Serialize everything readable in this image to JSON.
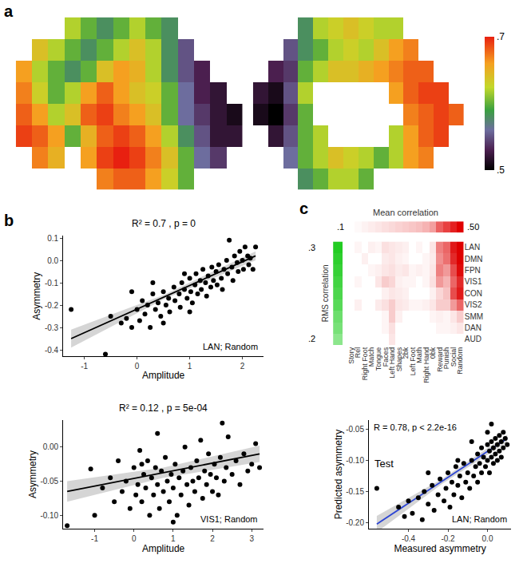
{
  "chart_data": [
    {
      "type": "heatmap",
      "panel_label": "a",
      "tick_labels": false,
      "views": [
        {
          "cells": [
            [
              null,
              null,
              null,
              0.62,
              0.6,
              0.58,
              0.6,
              0.62,
              0.6,
              0.58,
              null,
              null,
              null,
              null
            ],
            [
              null,
              0.64,
              0.62,
              0.6,
              0.58,
              0.6,
              0.62,
              0.64,
              0.62,
              0.58,
              0.55,
              null,
              null,
              null
            ],
            [
              0.66,
              0.62,
              0.6,
              0.58,
              0.6,
              0.64,
              0.66,
              0.65,
              0.62,
              0.58,
              0.55,
              0.53,
              null,
              null
            ],
            [
              0.67,
              0.63,
              0.6,
              0.62,
              0.66,
              0.68,
              0.66,
              0.64,
              0.63,
              0.6,
              0.56,
              0.53,
              0.52,
              null
            ],
            [
              0.68,
              0.66,
              0.62,
              0.64,
              0.68,
              0.69,
              0.67,
              0.66,
              0.64,
              0.6,
              0.56,
              0.54,
              0.52,
              0.51
            ],
            [
              0.69,
              0.68,
              0.66,
              0.6,
              0.65,
              0.68,
              0.69,
              0.68,
              0.66,
              0.62,
              0.58,
              0.55,
              0.52,
              0.52
            ],
            [
              null,
              0.67,
              0.65,
              null,
              0.66,
              0.69,
              0.7,
              0.69,
              0.67,
              0.64,
              0.6,
              0.56,
              0.54,
              null
            ],
            [
              null,
              null,
              null,
              null,
              null,
              0.67,
              0.68,
              0.68,
              0.66,
              0.63,
              0.6,
              null,
              null,
              null
            ]
          ]
        },
        {
          "cells": [
            [
              null,
              null,
              null,
              0.58,
              0.62,
              0.63,
              0.64,
              0.63,
              0.62,
              0.62,
              null,
              null,
              null,
              null
            ],
            [
              null,
              null,
              0.55,
              0.58,
              0.6,
              0.62,
              0.63,
              0.62,
              0.64,
              0.66,
              0.67,
              null,
              null,
              null
            ],
            [
              null,
              0.53,
              0.54,
              0.6,
              0.62,
              0.64,
              0.64,
              0.65,
              0.66,
              0.67,
              0.68,
              0.68,
              null,
              null
            ],
            [
              0.52,
              0.51,
              0.55,
              0.62,
              null,
              null,
              null,
              null,
              null,
              0.66,
              0.68,
              0.69,
              0.69,
              null
            ],
            [
              0.51,
              0.5,
              0.54,
              0.6,
              null,
              null,
              null,
              null,
              null,
              null,
              0.67,
              0.68,
              0.69,
              0.68
            ],
            [
              null,
              0.52,
              0.55,
              0.6,
              0.62,
              null,
              null,
              null,
              null,
              0.62,
              0.66,
              0.68,
              0.69,
              null
            ],
            [
              null,
              null,
              0.56,
              0.6,
              0.62,
              0.64,
              0.63,
              0.62,
              0.6,
              0.62,
              0.66,
              0.67,
              null,
              null
            ],
            [
              null,
              null,
              null,
              0.58,
              0.6,
              0.62,
              0.62,
              0.6,
              null,
              null,
              null,
              null,
              null,
              null
            ]
          ]
        }
      ],
      "colorbar": {
        "range": [
          0.5,
          0.7
        ],
        "ticks": [
          {
            "value": 0.5,
            "label": ".5"
          },
          {
            "value": 0.7,
            "label": ".7"
          }
        ]
      }
    },
    {
      "type": "scatter",
      "panel_label": "b",
      "title": "R² = 0.7 , p = 0",
      "annotations": [
        "LAN; Random"
      ],
      "x_label": "Amplitude",
      "y_label": "Asymmetry",
      "grid": false,
      "marker": "circle",
      "color": "#000000",
      "xlim": [
        -1.4,
        2.4
      ],
      "ylim": [
        -0.43,
        0.11
      ],
      "xticks": [
        -1,
        0,
        1,
        2
      ],
      "yticks": [
        -0.4,
        -0.3,
        -0.2,
        -0.1,
        {
          "value": 0,
          "label": "0.0"
        },
        0.1
      ],
      "x": [
        -1.25,
        -0.6,
        -0.5,
        -0.3,
        -0.2,
        -0.1,
        0.0,
        0.05,
        0.1,
        0.15,
        0.2,
        0.25,
        0.3,
        0.35,
        0.4,
        0.45,
        0.5,
        0.55,
        0.6,
        0.62,
        0.7,
        0.72,
        0.8,
        0.82,
        0.85,
        0.9,
        0.95,
        1.0,
        1.02,
        1.05,
        1.1,
        1.12,
        1.15,
        1.2,
        1.22,
        1.25,
        1.3,
        1.32,
        1.35,
        1.4,
        1.42,
        1.45,
        1.5,
        1.52,
        1.55,
        1.6,
        1.62,
        1.65,
        1.7,
        1.72,
        1.75,
        1.8,
        1.82,
        1.85,
        1.9,
        1.92,
        1.95,
        2.0,
        2.02,
        2.05,
        2.1,
        2.12,
        2.15,
        2.2,
        2.25,
        0.9,
        0.3,
        -0.1,
        1.0,
        0.5
      ],
      "y": [
        -0.22,
        -0.42,
        -0.25,
        -0.28,
        -0.26,
        -0.3,
        -0.22,
        -0.27,
        -0.18,
        -0.24,
        -0.2,
        -0.3,
        -0.15,
        -0.22,
        -0.19,
        -0.25,
        -0.14,
        -0.2,
        -0.17,
        -0.23,
        -0.12,
        -0.18,
        -0.15,
        -0.21,
        -0.1,
        -0.13,
        -0.17,
        -0.08,
        -0.14,
        -0.19,
        -0.11,
        -0.06,
        -0.15,
        -0.09,
        -0.13,
        -0.04,
        -0.1,
        -0.16,
        -0.07,
        -0.12,
        -0.03,
        -0.09,
        -0.05,
        -0.11,
        -0.02,
        -0.08,
        -0.13,
        -0.04,
        0.0,
        -0.06,
        0.09,
        -0.03,
        -0.09,
        0.02,
        -0.01,
        -0.05,
        0.04,
        0.0,
        -0.04,
        0.06,
        0.02,
        -0.02,
        0.01,
        -0.04,
        0.06,
        -0.06,
        -0.1,
        -0.14,
        -0.23,
        -0.28
      ],
      "fit": {
        "color": "#000000",
        "x": [
          -1.25,
          0.5,
          2.25
        ],
        "y": [
          -0.35,
          -0.165,
          0.02
        ],
        "lower": [
          -0.39,
          -0.175,
          0.0
        ],
        "upper": [
          -0.31,
          -0.155,
          0.04
        ]
      }
    },
    {
      "type": "scatter",
      "title": "R² = 0.12 , p = 5e-04",
      "annotations": [
        "VIS1; Random"
      ],
      "x_label": "Amplitude",
      "y_label": "Asymmetry",
      "grid": false,
      "marker": "circle",
      "color": "#000000",
      "xlim": [
        -1.8,
        3.3
      ],
      "ylim": [
        -0.12,
        0.04
      ],
      "xticks": [
        -1,
        0,
        1,
        2,
        3
      ],
      "yticks": [
        {
          "value": -0.1,
          "label": "-0.10"
        },
        {
          "value": -0.05,
          "label": "-0.05"
        },
        {
          "value": 0,
          "label": "0.00"
        }
      ],
      "x": [
        -1.7,
        -1.1,
        -1.0,
        -0.8,
        -0.6,
        -0.5,
        -0.4,
        -0.3,
        -0.2,
        -0.1,
        0.0,
        0.05,
        0.1,
        0.15,
        0.2,
        0.25,
        0.3,
        0.35,
        0.4,
        0.45,
        0.5,
        0.55,
        0.6,
        0.65,
        0.7,
        0.75,
        0.8,
        0.85,
        0.9,
        0.95,
        1.0,
        1.05,
        1.1,
        1.15,
        1.2,
        1.25,
        1.3,
        1.35,
        1.4,
        1.45,
        1.5,
        1.55,
        1.6,
        1.65,
        1.7,
        1.75,
        1.8,
        1.85,
        1.9,
        1.95,
        2.0,
        2.05,
        2.1,
        2.2,
        2.25,
        2.3,
        2.35,
        2.4,
        2.5,
        2.6,
        2.7,
        2.8,
        2.9,
        3.0,
        3.1,
        3.2,
        1.0,
        0.2,
        2.15,
        0.6
      ],
      "y": [
        -0.115,
        -0.032,
        -0.1,
        -0.06,
        -0.045,
        -0.08,
        -0.02,
        -0.065,
        -0.05,
        -0.09,
        -0.03,
        -0.07,
        -0.055,
        -0.005,
        -0.08,
        -0.04,
        -0.06,
        -0.02,
        -0.1,
        -0.045,
        -0.07,
        -0.03,
        -0.055,
        -0.09,
        -0.035,
        -0.065,
        -0.015,
        -0.05,
        -0.08,
        -0.04,
        -0.06,
        -0.025,
        -0.1,
        -0.045,
        -0.07,
        -0.035,
        0.0,
        -0.055,
        -0.085,
        -0.03,
        -0.05,
        -0.065,
        -0.02,
        -0.045,
        0.01,
        -0.075,
        -0.035,
        -0.055,
        -0.01,
        -0.04,
        -0.065,
        -0.025,
        -0.045,
        -0.015,
        0.035,
        -0.05,
        -0.03,
        0.015,
        -0.04,
        -0.02,
        -0.055,
        -0.01,
        -0.035,
        -0.025,
        0.005,
        -0.03,
        -0.11,
        -0.025,
        -0.07,
        0.02
      ],
      "fit": {
        "color": "#000000",
        "x": [
          -1.7,
          0.75,
          3.2
        ],
        "y": [
          -0.065,
          -0.0375,
          -0.01
        ],
        "lower": [
          -0.08,
          -0.045,
          -0.022
        ],
        "upper": [
          -0.05,
          -0.03,
          0.002
        ]
      }
    },
    {
      "type": "heatmap",
      "panel_label": "c",
      "rows": [
        "LAN",
        "DMN",
        "FPN",
        "VIS1",
        "CON",
        "VIS2",
        "SMM",
        "DAN",
        "AUD"
      ],
      "columns": [
        "Story",
        "Rel",
        "Right Foot",
        "Match",
        "Tongue",
        "Faces",
        "Left Hand",
        "Shapes",
        "2bk",
        "Left Foot",
        "Math",
        "Right Hand",
        "0bk",
        "Reward",
        "Punish",
        "Social",
        "Random"
      ],
      "zlim": [
        0,
        0.5
      ],
      "cells": [
        [
          0,
          0.02,
          0,
          0.03,
          0.02,
          0.06,
          0.05,
          0.04,
          0.03,
          0,
          0.02,
          0,
          0.05,
          0.25,
          0.3,
          0.45,
          0.5
        ],
        [
          0,
          0,
          0.03,
          0,
          0,
          0.04,
          0.05,
          0.03,
          0.02,
          0,
          0,
          0.02,
          0.04,
          0.22,
          0.28,
          0.42,
          0.5
        ],
        [
          0,
          0,
          0,
          0.02,
          0.03,
          0.05,
          0.06,
          0.04,
          0.05,
          0.02,
          0.03,
          0.02,
          0.05,
          0.25,
          0.2,
          0.35,
          0.48
        ],
        [
          0,
          0.02,
          0,
          0,
          0.05,
          0.1,
          0.08,
          0.03,
          0.02,
          0.02,
          0,
          0.02,
          0.06,
          0.2,
          0.15,
          0.3,
          0.42
        ],
        [
          0,
          0,
          0,
          0,
          0,
          0.03,
          0.05,
          0.04,
          0.03,
          0,
          0,
          0,
          0.03,
          0.08,
          0.12,
          0.35,
          0.45
        ],
        [
          0,
          0.03,
          0,
          0,
          0.04,
          0.06,
          0.1,
          0.05,
          0.04,
          0.02,
          0.02,
          0.03,
          0.05,
          0.1,
          0.1,
          0.2,
          0.3
        ],
        [
          0,
          0,
          0,
          0,
          0,
          0.02,
          0.1,
          0.03,
          0,
          0,
          0,
          0,
          0.02,
          0.03,
          0.02,
          0.05,
          0.1
        ],
        [
          0,
          0,
          0,
          0,
          0,
          0.02,
          0.06,
          0,
          0,
          0,
          0,
          0,
          0,
          0.02,
          0.02,
          0.03,
          0.05
        ],
        [
          0,
          0,
          0,
          0,
          0,
          0,
          0.05,
          0,
          0,
          0,
          0,
          0,
          0,
          0,
          0,
          0,
          0
        ]
      ],
      "mean_correlation": {
        "title": "Mean correlation",
        "range": [
          0.1,
          0.5
        ],
        "ticks": [
          {
            "value": 0.1,
            "label": ".1"
          },
          {
            "value": 0.5,
            "label": ".50"
          }
        ],
        "values": [
          0.1,
          0.11,
          0.12,
          0.13,
          0.14,
          0.15,
          0.16,
          0.17,
          0.18,
          0.19,
          0.2,
          0.22,
          0.25,
          0.35,
          0.4,
          0.45,
          0.5
        ]
      },
      "rms_correlation": {
        "title": "RMS correlation",
        "range": [
          0.2,
          0.3
        ],
        "ticks": [
          {
            "value": 0.3,
            "label": ".3"
          },
          {
            "value": 0.2,
            "label": ".2"
          }
        ],
        "values": [
          0.3,
          0.29,
          0.28,
          0.27,
          0.26,
          0.25,
          0.23,
          0.22,
          0.2
        ]
      }
    },
    {
      "type": "scatter",
      "annotations": [
        "R = 0.78, p < 2.2e-16",
        "Test",
        "LAN; Random"
      ],
      "x_label": "Measured asymmetry",
      "y_label": "Predicted asymmetry",
      "grid": false,
      "marker": "circle",
      "color": "#000000",
      "xlim": [
        -0.6,
        0.12
      ],
      "ylim": [
        -0.21,
        -0.035
      ],
      "xticks": [
        -0.4,
        -0.2,
        {
          "value": 0,
          "label": "0.0"
        }
      ],
      "yticks": [
        {
          "value": -0.2,
          "label": "-0.20"
        },
        {
          "value": -0.15,
          "label": "-0.15"
        },
        {
          "value": -0.1,
          "label": "-0.10"
        },
        {
          "value": -0.05,
          "label": "-0.05"
        }
      ],
      "x": [
        -0.56,
        -0.45,
        -0.42,
        -0.4,
        -0.38,
        -0.35,
        -0.33,
        -0.32,
        -0.3,
        -0.28,
        -0.27,
        -0.25,
        -0.24,
        -0.22,
        -0.21,
        -0.2,
        -0.19,
        -0.18,
        -0.17,
        -0.16,
        -0.15,
        -0.14,
        -0.13,
        -0.12,
        -0.11,
        -0.1,
        -0.09,
        -0.08,
        -0.07,
        -0.06,
        -0.05,
        -0.05,
        -0.04,
        -0.03,
        -0.03,
        -0.02,
        -0.01,
        0.0,
        0.0,
        0.01,
        0.01,
        0.02,
        0.02,
        0.03,
        0.03,
        0.04,
        0.04,
        0.05,
        0.05,
        0.06,
        0.06,
        0.07,
        0.07,
        0.08,
        0.08,
        0.09,
        0.1,
        0.02,
        -0.15,
        -0.3,
        0.0,
        -0.08
      ],
      "y": [
        -0.145,
        -0.175,
        -0.19,
        -0.165,
        -0.185,
        -0.16,
        -0.195,
        -0.15,
        -0.17,
        -0.14,
        -0.18,
        -0.155,
        -0.13,
        -0.165,
        -0.145,
        -0.12,
        -0.175,
        -0.135,
        -0.155,
        -0.11,
        -0.14,
        -0.125,
        -0.16,
        -0.105,
        -0.135,
        -0.12,
        -0.145,
        -0.1,
        -0.125,
        -0.11,
        -0.09,
        -0.135,
        -0.105,
        -0.08,
        -0.12,
        -0.095,
        -0.11,
        -0.075,
        -0.1,
        -0.085,
        -0.12,
        -0.07,
        -0.095,
        -0.08,
        -0.105,
        -0.065,
        -0.09,
        -0.075,
        -0.1,
        -0.06,
        -0.085,
        -0.07,
        -0.095,
        -0.055,
        -0.08,
        -0.065,
        -0.075,
        -0.042,
        -0.1,
        -0.12,
        -0.055,
        -0.07
      ],
      "fit": {
        "color": "#2b44d4",
        "x": [
          -0.56,
          -0.23,
          0.1
        ],
        "y": [
          -0.202,
          -0.134,
          -0.065
        ],
        "lower": [
          -0.215,
          -0.138,
          -0.071
        ],
        "upper": [
          -0.189,
          -0.13,
          -0.059
        ]
      }
    }
  ]
}
